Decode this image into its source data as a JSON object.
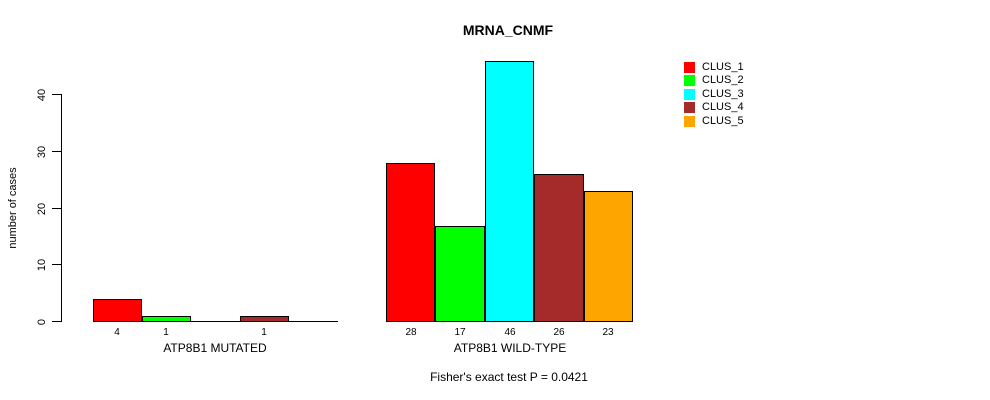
{
  "chart_data": {
    "type": "bar",
    "title": "MRNA_CNMF",
    "ylabel": "number of cases",
    "xlabel": "",
    "subtitle": "Fisher's exact test P = 0.0421",
    "ylim": [
      0,
      46
    ],
    "yticks": [
      0,
      10,
      20,
      30,
      40
    ],
    "grid": false,
    "legend_position": "right",
    "series": [
      {
        "name": "CLUS_1",
        "color": "#FF0000"
      },
      {
        "name": "CLUS_2",
        "color": "#00FF00"
      },
      {
        "name": "CLUS_3",
        "color": "#00FFFF"
      },
      {
        "name": "CLUS_4",
        "color": "#A52A2A"
      },
      {
        "name": "CLUS_5",
        "color": "#FFA500"
      }
    ],
    "groups": [
      {
        "label": "ATP8B1 MUTATED",
        "values": [
          4,
          1,
          0,
          1,
          0
        ],
        "bar_labels": [
          "4",
          "1",
          "",
          "1",
          ""
        ]
      },
      {
        "label": "ATP8B1 WILD-TYPE",
        "values": [
          28,
          17,
          46,
          26,
          23
        ],
        "bar_labels": [
          "28",
          "17",
          "46",
          "26",
          "23"
        ]
      }
    ]
  }
}
